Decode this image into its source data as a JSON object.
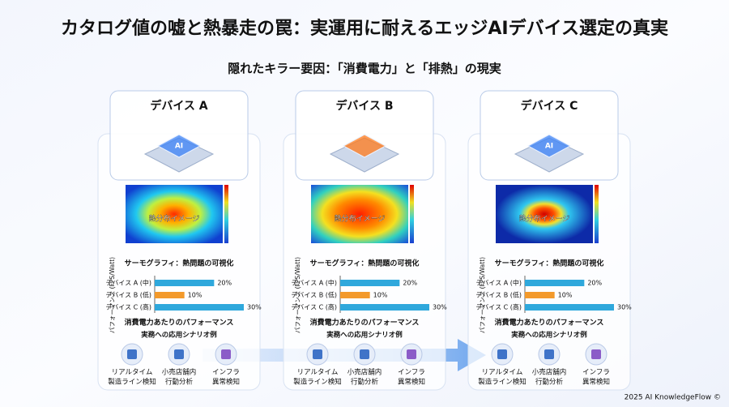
{
  "title": "カタログ値の嘘と熱暴走の罠：実運用に耐えるエッジAIデバイス選定の真実",
  "subtitle": "隠れたキラー要因：「消費電力」と「排熱」の現実",
  "panels": [
    {
      "name": "デバイス A",
      "chip_label": "AI",
      "heatmap_label": "熱分布イメージ",
      "heatmap_caption": "サーモグラフィ：熱問題の可視化",
      "chart": {
        "type": "bar",
        "y_axis_label": "パフォーマンス (FPS/Watt)",
        "categories": [
          "デバイス A (中)",
          "デバイス B (低)",
          "デバイス C (高)"
        ],
        "values": [
          20,
          10,
          30
        ],
        "value_labels": [
          "20%",
          "10%",
          "30%"
        ],
        "colors": [
          "#2fa8dc",
          "#f39a2b",
          "#2fa8dc"
        ],
        "xlim": [
          0,
          30
        ],
        "caption": "消費電力あたりのパフォーマンス"
      },
      "scenario_title": "実務への応用シナリオ例",
      "scenarios": [
        [
          "リアルタイム",
          "製造ライン検知"
        ],
        [
          "小売店舗内",
          "行動分析"
        ],
        [
          "インフラ",
          "異常検知"
        ]
      ]
    },
    {
      "name": "デバイス B",
      "heatmap_label": "熱分布イメージ",
      "heatmap_caption": "サーモグラフィ：熱問題の可視化",
      "chart": {
        "type": "bar",
        "y_axis_label": "パフォーマンス (FPS/Watt)",
        "categories": [
          "デバイス A (中)",
          "デバイス B (低)",
          "デバイス C (高)"
        ],
        "values": [
          20,
          10,
          30
        ],
        "value_labels": [
          "20%",
          "10%",
          "30%"
        ],
        "colors": [
          "#2fa8dc",
          "#f39a2b",
          "#2fa8dc"
        ],
        "xlim": [
          0,
          30
        ],
        "caption": "消費電力あたりのパフォーマンス"
      },
      "scenario_title": "実務への応用シナリオ例",
      "scenarios": [
        [
          "リアルタイム",
          "製造ライン検知"
        ],
        [
          "小売店舗内",
          "行動分析"
        ],
        [
          "インフラ",
          "異常検知"
        ]
      ]
    },
    {
      "name": "デバイス C",
      "chip_label": "AI",
      "heatmap_label": "熱分布イメージ",
      "heatmap_caption": "サーモグラフィ：熱問題の可視化",
      "chart": {
        "type": "bar",
        "y_axis_label": "パフォーマンス (FPS/Watt)",
        "categories": [
          "デバイス A (中)",
          "デバイス B (低)",
          "デバイス C (高)"
        ],
        "values": [
          20,
          10,
          30
        ],
        "value_labels": [
          "20%",
          "10%",
          "30%"
        ],
        "colors": [
          "#2fa8dc",
          "#f39a2b",
          "#2fa8dc"
        ],
        "xlim": [
          0,
          30
        ],
        "caption": "消費電力あたりのパフォーマンス"
      },
      "scenario_title": "実務への応用シナリオ例",
      "scenarios": [
        [
          "リアルタイム",
          "製造ライン検知"
        ],
        [
          "小売店舗内",
          "行動分析"
        ],
        [
          "インフラ",
          "異常検知"
        ]
      ]
    }
  ],
  "footer": "2025 AI KnowledgeFlow ©"
}
